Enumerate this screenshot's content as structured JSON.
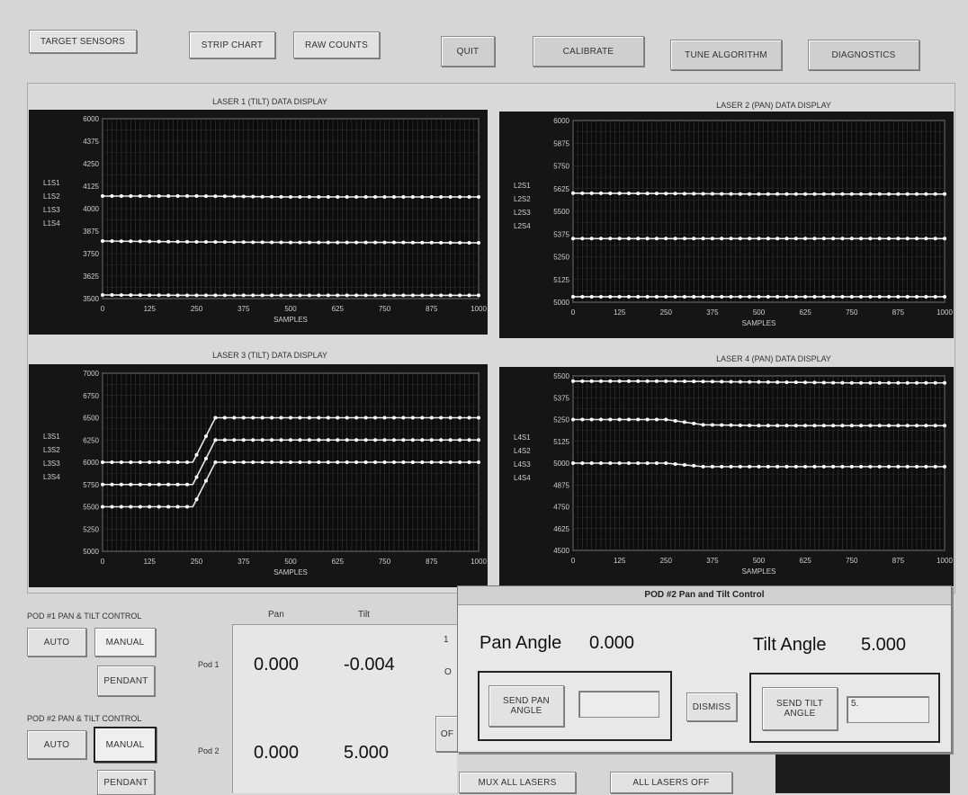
{
  "toolbar": {
    "target_sensors": "TARGET SENSORS",
    "strip_chart": "STRIP CHART",
    "raw_counts": "RAW COUNTS",
    "quit": "QUIT",
    "calibrate": "CALIBRATE",
    "tune_algorithm": "TUNE ALGORITHM",
    "diagnostics": "DIAGNOSTICS"
  },
  "charts": {
    "laser1": {
      "title": "LASER 1 (TILT) DATA DISPLAY",
      "xlabel": "SAMPLES",
      "yticks": [
        "6000",
        "4375",
        "4250",
        "4125",
        "4000",
        "3875",
        "3750",
        "3625",
        "3500"
      ],
      "xticks": [
        "0",
        "125",
        "250",
        "375",
        "500",
        "625",
        "750",
        "875",
        "1000"
      ],
      "legend": [
        "L1S1",
        "L1S2",
        "L1S3",
        "L1S4"
      ]
    },
    "laser2": {
      "title": "LASER 2 (PAN) DATA DISPLAY",
      "xlabel": "SAMPLES",
      "yticks": [
        "6000",
        "5875",
        "5750",
        "5625",
        "5500",
        "5375",
        "5250",
        "5125",
        "5000"
      ],
      "xticks": [
        "0",
        "125",
        "250",
        "375",
        "500",
        "625",
        "750",
        "875",
        "1000"
      ],
      "legend": [
        "L2S1",
        "L2S2",
        "L2S3",
        "L2S4"
      ]
    },
    "laser3": {
      "title": "LASER 3 (TILT) DATA DISPLAY",
      "xlabel": "SAMPLES",
      "yticks": [
        "7000",
        "6750",
        "6500",
        "6250",
        "6000",
        "5750",
        "5500",
        "5250",
        "5000"
      ],
      "xticks": [
        "0",
        "125",
        "250",
        "375",
        "500",
        "625",
        "750",
        "875",
        "1000"
      ],
      "legend": [
        "L3S1",
        "L3S2",
        "L3S3",
        "L3S4"
      ]
    },
    "laser4": {
      "title": "LASER 4 (PAN) DATA DISPLAY",
      "xlabel": "SAMPLES",
      "yticks": [
        "5500",
        "5375",
        "5250",
        "5125",
        "5000",
        "4875",
        "4750",
        "4625",
        "4500"
      ],
      "xticks": [
        "0",
        "125",
        "250",
        "375",
        "500",
        "625",
        "750",
        "875",
        "1000"
      ],
      "legend": [
        "L4S1",
        "L4S2",
        "L4S3",
        "L4S4"
      ]
    }
  },
  "chart_data": [
    {
      "type": "line",
      "title": "LASER 1 (TILT) DATA DISPLAY",
      "xlabel": "SAMPLES",
      "xlim": [
        0,
        1000
      ],
      "ylim": [
        3500,
        4500
      ],
      "series": [
        {
          "values": [
            [
              0,
              4070
            ],
            [
              250,
              4070
            ],
            [
              500,
              4065
            ],
            [
              750,
              4065
            ],
            [
              1000,
              4065
            ]
          ]
        },
        {
          "values": [
            [
              0,
              3820
            ],
            [
              250,
              3815
            ],
            [
              500,
              3812
            ],
            [
              750,
              3812
            ],
            [
              1000,
              3810
            ]
          ]
        },
        {
          "values": [
            [
              0,
              3520
            ],
            [
              250,
              3518
            ],
            [
              500,
              3518
            ],
            [
              750,
              3518
            ],
            [
              1000,
              3518
            ]
          ]
        }
      ]
    },
    {
      "type": "line",
      "title": "LASER 2 (PAN) DATA DISPLAY",
      "xlabel": "SAMPLES",
      "xlim": [
        0,
        1000
      ],
      "ylim": [
        5000,
        6000
      ],
      "series": [
        {
          "values": [
            [
              0,
              5600
            ],
            [
              250,
              5598
            ],
            [
              500,
              5595
            ],
            [
              750,
              5595
            ],
            [
              1000,
              5595
            ]
          ]
        },
        {
          "values": [
            [
              0,
              5350
            ],
            [
              250,
              5350
            ],
            [
              500,
              5350
            ],
            [
              750,
              5350
            ],
            [
              1000,
              5350
            ]
          ]
        },
        {
          "values": [
            [
              0,
              5030
            ],
            [
              250,
              5030
            ],
            [
              500,
              5030
            ],
            [
              750,
              5030
            ],
            [
              1000,
              5030
            ]
          ]
        }
      ]
    },
    {
      "type": "line",
      "title": "LASER 3 (TILT) DATA DISPLAY",
      "xlabel": "SAMPLES",
      "xlim": [
        0,
        1000
      ],
      "ylim": [
        5000,
        7000
      ],
      "series": [
        {
          "values": [
            [
              0,
              6000
            ],
            [
              240,
              6000
            ],
            [
              300,
              6500
            ],
            [
              500,
              6500
            ],
            [
              750,
              6500
            ],
            [
              1000,
              6500
            ]
          ]
        },
        {
          "values": [
            [
              0,
              5750
            ],
            [
              240,
              5750
            ],
            [
              300,
              6250
            ],
            [
              500,
              6250
            ],
            [
              750,
              6250
            ],
            [
              1000,
              6250
            ]
          ]
        },
        {
          "values": [
            [
              0,
              5500
            ],
            [
              240,
              5500
            ],
            [
              300,
              6000
            ],
            [
              500,
              6000
            ],
            [
              750,
              6000
            ],
            [
              1000,
              6000
            ]
          ]
        }
      ]
    },
    {
      "type": "line",
      "title": "LASER 4 (PAN) DATA DISPLAY",
      "xlabel": "SAMPLES",
      "xlim": [
        0,
        1000
      ],
      "ylim": [
        4500,
        5500
      ],
      "series": [
        {
          "values": [
            [
              0,
              5470
            ],
            [
              250,
              5470
            ],
            [
              500,
              5465
            ],
            [
              750,
              5460
            ],
            [
              1000,
              5460
            ]
          ]
        },
        {
          "values": [
            [
              0,
              5250
            ],
            [
              250,
              5250
            ],
            [
              350,
              5220
            ],
            [
              500,
              5215
            ],
            [
              750,
              5215
            ],
            [
              1000,
              5215
            ]
          ]
        },
        {
          "values": [
            [
              0,
              5000
            ],
            [
              250,
              5000
            ],
            [
              350,
              4980
            ],
            [
              500,
              4980
            ],
            [
              750,
              4980
            ],
            [
              1000,
              4980
            ]
          ]
        }
      ]
    }
  ],
  "pod1": {
    "label": "POD #1 PAN & TILT CONTROL",
    "auto": "AUTO",
    "manual": "MANUAL",
    "pendant": "PENDANT"
  },
  "pod2": {
    "label": "POD #2 PAN & TILT CONTROL",
    "auto": "AUTO",
    "manual": "MANUAL",
    "pendant": "PENDANT"
  },
  "readout": {
    "col_pan": "Pan",
    "col_tilt": "Tilt",
    "pod1_label": "Pod 1",
    "pod2_label": "Pod 2",
    "pod1_pan": "0.000",
    "pod1_tilt": "-0.004",
    "pod2_pan": "0.000",
    "pod2_tilt": "5.000"
  },
  "bottom": {
    "mux_all": "MUX ALL LASERS",
    "all_off": "ALL LASERS OFF",
    "partial_1": "1",
    "partial_2": "O",
    "partial_3": "OF"
  },
  "dialog": {
    "title": "POD #2 Pan and Tilt Control",
    "pan_label": "Pan Angle",
    "pan_value": "0.000",
    "tilt_label": "Tilt Angle",
    "tilt_value": "5.000",
    "send_pan": "SEND PAN ANGLE",
    "send_tilt": "SEND TILT ANGLE",
    "dismiss": "DISMISS",
    "pan_input_value": "",
    "tilt_input_value": "5."
  }
}
